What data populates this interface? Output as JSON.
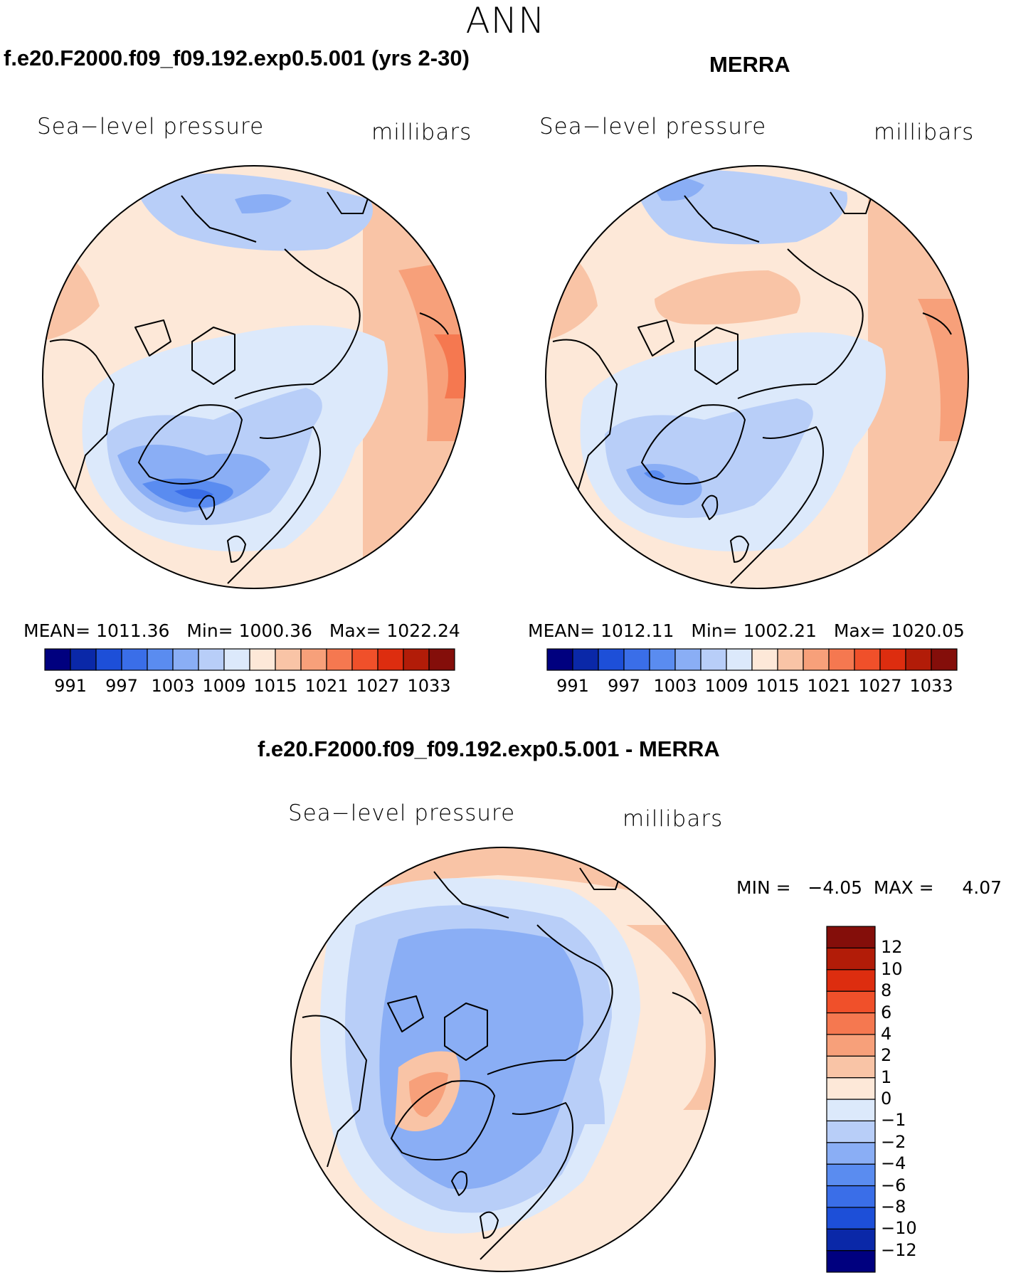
{
  "season": "ANN",
  "panels": [
    {
      "id": "model",
      "title": "f.e20.F2000.f09_f09.192.exp0.5.001 (yrs 2-30)",
      "field": "Sea−level pressure",
      "units": "millibars",
      "stats": {
        "mean_label": "MEAN=",
        "mean": "1011.36",
        "min_label": "Min=",
        "min": "1000.36",
        "max_label": "Max=",
        "max": "1022.24"
      }
    },
    {
      "id": "obs",
      "title": "MERRA",
      "field": "Sea−level pressure",
      "units": "millibars",
      "stats": {
        "mean_label": "MEAN=",
        "mean": "1012.11",
        "min_label": "Min=",
        "min": "1002.21",
        "max_label": "Max=",
        "max": "1020.05"
      }
    }
  ],
  "diff": {
    "title": "f.e20.F2000.f09_f09.192.exp0.5.001 - MERRA",
    "field": "Sea−level pressure",
    "units": "millibars",
    "minmax": {
      "min_label": "MIN =",
      "min": "−4.05",
      "max_label": "MAX =",
      "max": "4.07"
    }
  },
  "colorbar_abs": {
    "colors": [
      "#00007f",
      "#0a28a8",
      "#1d4fd8",
      "#3a6ee8",
      "#5a8cf0",
      "#8aaef5",
      "#b8cef8",
      "#dce9fb",
      "#fde8d8",
      "#f9c4a6",
      "#f7a07a",
      "#f57850",
      "#f0502a",
      "#dd2d0f",
      "#b21c08",
      "#840e0a"
    ],
    "labels": [
      "991",
      "997",
      "1003",
      "1009",
      "1015",
      "1021",
      "1027",
      "1033"
    ]
  },
  "colorbar_diff": {
    "colors": [
      "#00007f",
      "#0a28a8",
      "#1d4fd8",
      "#3a6ee8",
      "#5a8cf0",
      "#8aaef5",
      "#b8cef8",
      "#dce9fb",
      "#fde8d8",
      "#f9c4a6",
      "#f7a07a",
      "#f57850",
      "#f0502a",
      "#dd2d0f",
      "#b21c08",
      "#840e0a"
    ],
    "labels": [
      "12",
      "10",
      "8",
      "6",
      "4",
      "2",
      "1",
      "0",
      "−1",
      "−2",
      "−4",
      "−6",
      "−8",
      "−10",
      "−12"
    ]
  }
}
